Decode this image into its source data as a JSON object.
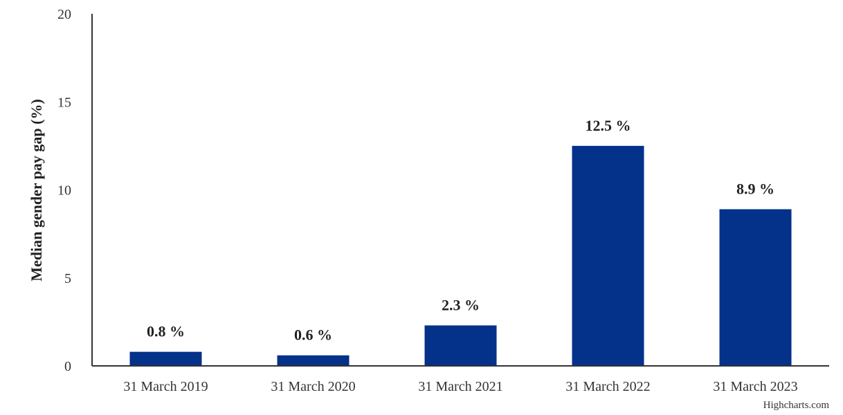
{
  "chart_data": {
    "type": "bar",
    "categories": [
      "31 March 2019",
      "31 March 2020",
      "31 March 2021",
      "31 March 2022",
      "31 March 2023"
    ],
    "values": [
      0.8,
      0.6,
      2.3,
      12.5,
      8.9
    ],
    "data_labels": [
      "0.8 %",
      "0.6 %",
      "2.3 %",
      "12.5 %",
      "8.9 %"
    ],
    "title": "",
    "xlabel": "",
    "ylabel": "Median gender pay gap (%)",
    "ylim": [
      0,
      20
    ],
    "yticks": [
      "0",
      "5",
      "10",
      "15",
      "20"
    ],
    "grid": false,
    "legend": "none",
    "bar_color": "#04318a"
  },
  "credits": "Highcharts.com"
}
